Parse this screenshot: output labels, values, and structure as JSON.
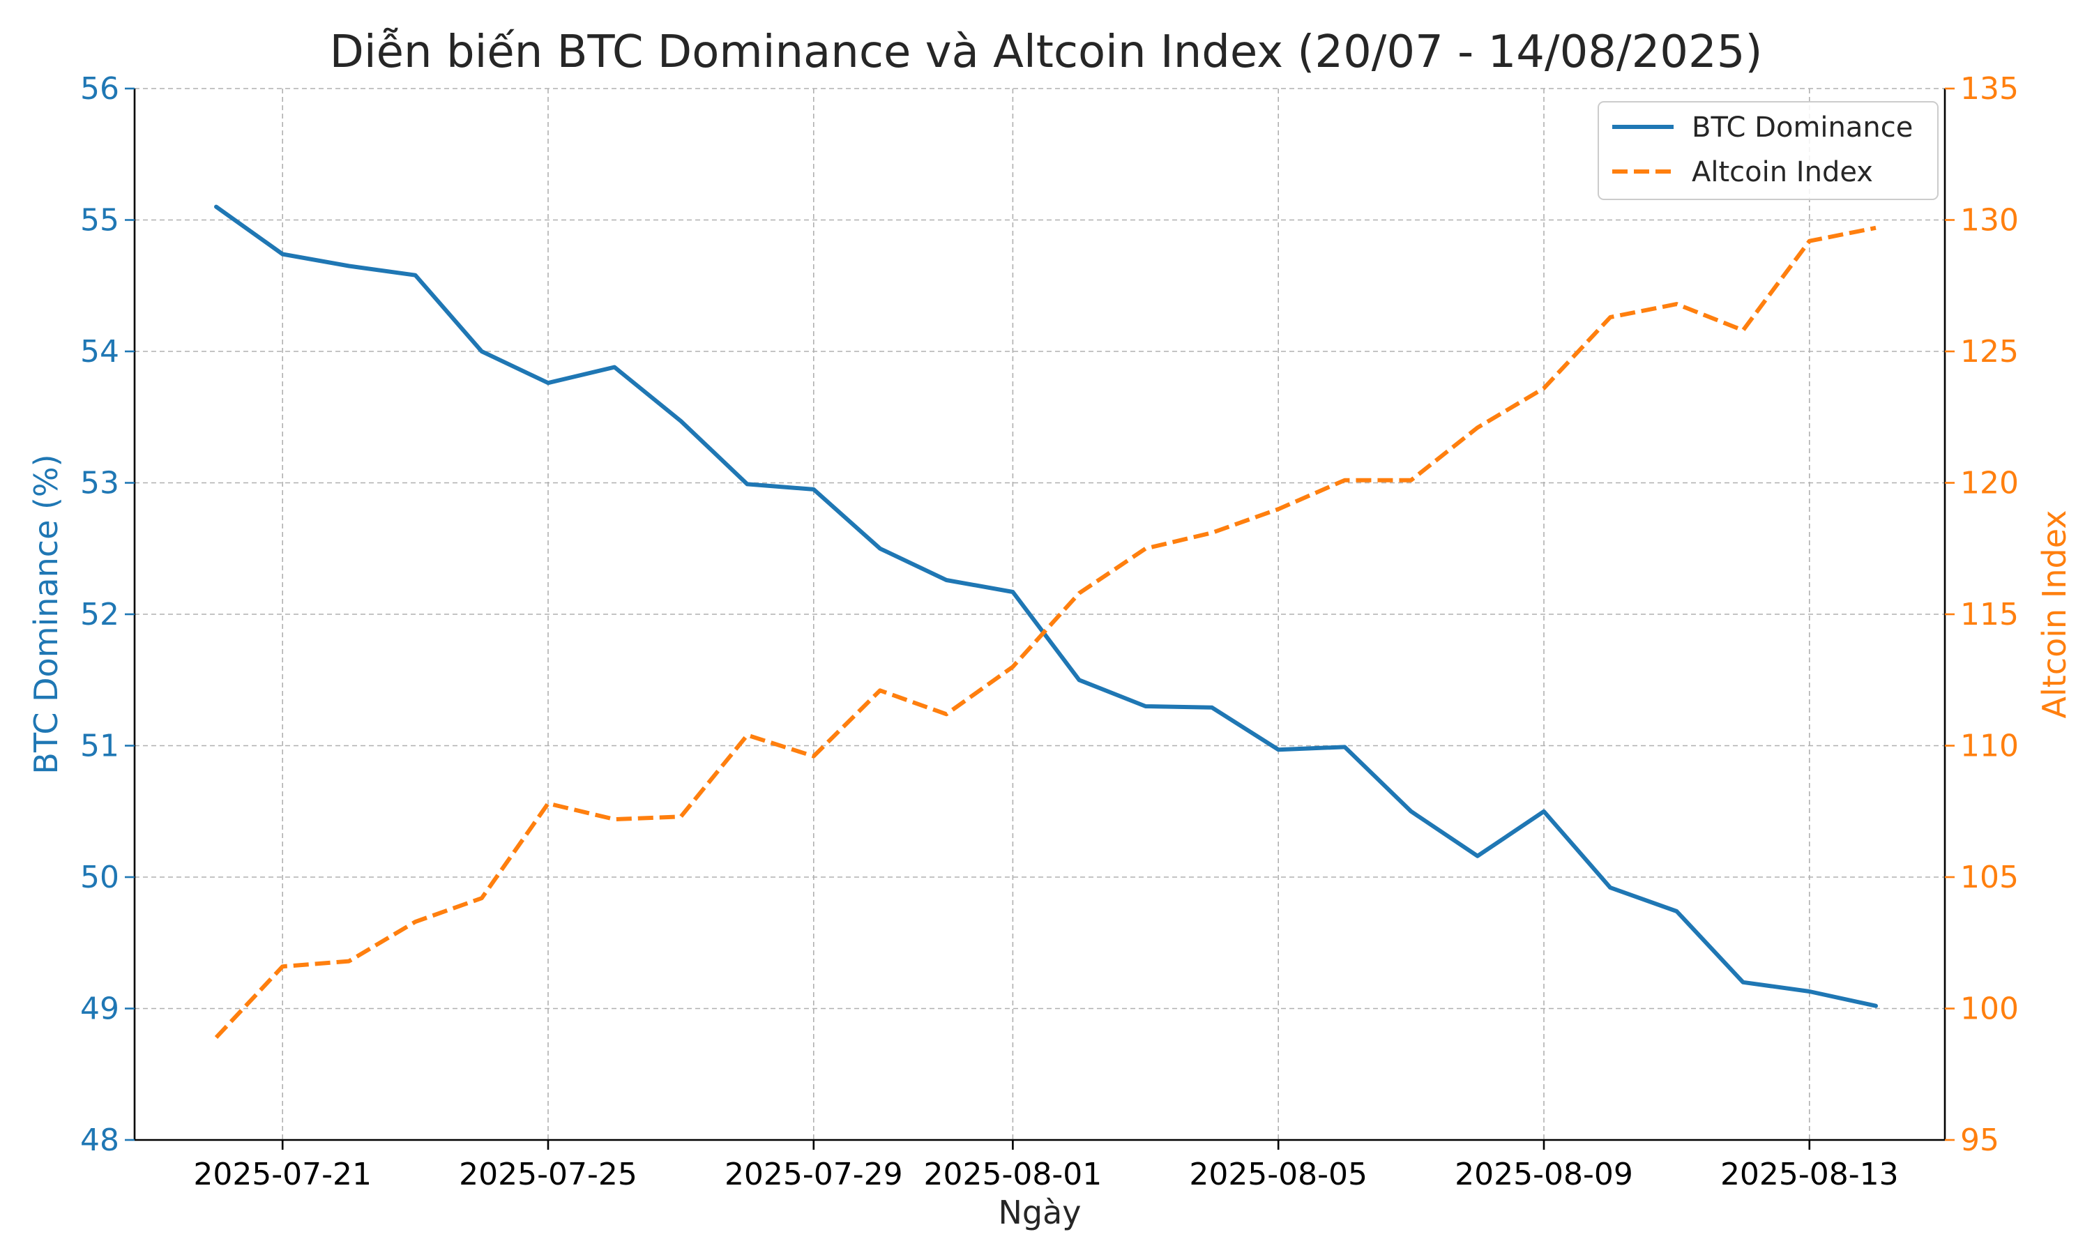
{
  "colors": {
    "btc": "#1f77b4",
    "alt": "#ff7f0e",
    "text": "#262626",
    "grid": "#b0b0b0"
  },
  "chart_data": {
    "type": "line",
    "title": "Diễn biến BTC Dominance và Altcoin Index (20/07 - 14/08/2025)",
    "xlabel": "Ngày",
    "ylabel_left": "BTC Dominance (%)",
    "ylabel_right": "Altcoin Index",
    "x_ticks": [
      "2025-07-21",
      "2025-07-25",
      "2025-07-29",
      "2025-08-01",
      "2025-08-05",
      "2025-08-09",
      "2025-08-13"
    ],
    "x": [
      "2025-07-20",
      "2025-07-21",
      "2025-07-22",
      "2025-07-23",
      "2025-07-24",
      "2025-07-25",
      "2025-07-26",
      "2025-07-27",
      "2025-07-28",
      "2025-07-29",
      "2025-07-30",
      "2025-07-31",
      "2025-08-01",
      "2025-08-02",
      "2025-08-03",
      "2025-08-04",
      "2025-08-05",
      "2025-08-06",
      "2025-08-07",
      "2025-08-08",
      "2025-08-09",
      "2025-08-10",
      "2025-08-11",
      "2025-08-12",
      "2025-08-13",
      "2025-08-14"
    ],
    "left_axis": {
      "ylim": [
        48,
        56
      ],
      "ticks": [
        "48",
        "49",
        "50",
        "51",
        "52",
        "53",
        "54",
        "55",
        "56"
      ]
    },
    "right_axis": {
      "ylim": [
        95,
        135
      ],
      "ticks": [
        "95",
        "100",
        "105",
        "110",
        "115",
        "120",
        "125",
        "130",
        "135"
      ]
    },
    "series": [
      {
        "name": "BTC Dominance",
        "axis": "left",
        "style": "solid",
        "values": [
          55.1,
          54.74,
          54.65,
          54.58,
          54.0,
          53.76,
          53.88,
          53.47,
          52.99,
          52.95,
          52.5,
          52.26,
          52.17,
          51.5,
          51.3,
          51.29,
          50.97,
          50.99,
          50.5,
          50.16,
          50.5,
          49.92,
          49.74,
          49.2,
          49.13,
          49.02
        ]
      },
      {
        "name": "Altcoin Index",
        "axis": "right",
        "style": "dashed",
        "values": [
          98.9,
          101.6,
          101.8,
          103.3,
          104.2,
          107.8,
          107.2,
          107.3,
          110.4,
          109.6,
          112.1,
          111.2,
          113.0,
          115.8,
          117.5,
          118.1,
          119.0,
          120.1,
          120.1,
          122.1,
          123.6,
          126.3,
          126.8,
          125.8,
          129.2,
          129.7
        ]
      }
    ],
    "grid": true,
    "legend": "top-right"
  }
}
